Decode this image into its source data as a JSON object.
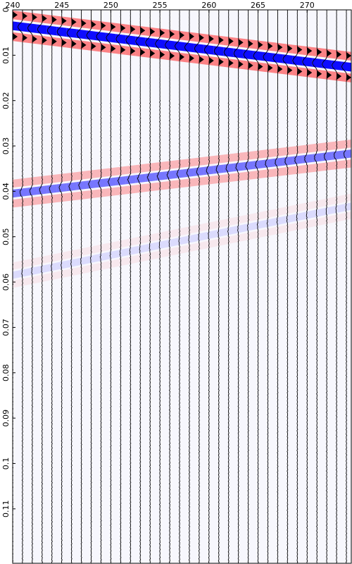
{
  "chart_data": {
    "type": "heatmap",
    "title": "",
    "xlabel": "",
    "ylabel": "",
    "x_ticks": [
      240,
      245,
      250,
      255,
      260,
      265,
      270
    ],
    "y_ticks": [
      0,
      0.01,
      0.02,
      0.03,
      0.04,
      0.05,
      0.06,
      0.07,
      0.08,
      0.09,
      0.1,
      0.11
    ],
    "y_tick_labels": [
      "0",
      "0.01",
      "0.02",
      "0.03",
      "0.04",
      "0.05",
      "0.06",
      "0.07",
      "0.08",
      "0.09",
      "0.1",
      "0.11"
    ],
    "xlim": [
      240,
      274.5
    ],
    "ylim": [
      0,
      0.122
    ],
    "y_inverted": true,
    "traces": [
      240,
      241,
      242,
      243,
      244,
      245,
      246,
      247,
      248,
      249,
      250,
      251,
      252,
      253,
      254,
      255,
      256,
      257,
      258,
      259,
      260,
      261,
      262,
      263,
      264,
      265,
      266,
      267,
      268,
      269,
      270,
      271,
      272,
      273,
      274
    ],
    "events": [
      {
        "name": "",
        "t_start": 0.0035,
        "t_end": 0.0125,
        "amplitude": 1.0,
        "halfwidth": 0.0012
      },
      {
        "name": "",
        "t_start": 0.0405,
        "t_end": 0.0318,
        "amplitude": 0.55,
        "halfwidth": 0.0011
      },
      {
        "name": "",
        "t_start": 0.0585,
        "t_end": 0.0435,
        "amplitude": 0.12,
        "halfwidth": 0.001
      }
    ],
    "colors": {
      "negative": "#0000ff",
      "positive": "#ff2020",
      "trace": "#000000",
      "background": "#ffffff"
    },
    "grid": false
  }
}
